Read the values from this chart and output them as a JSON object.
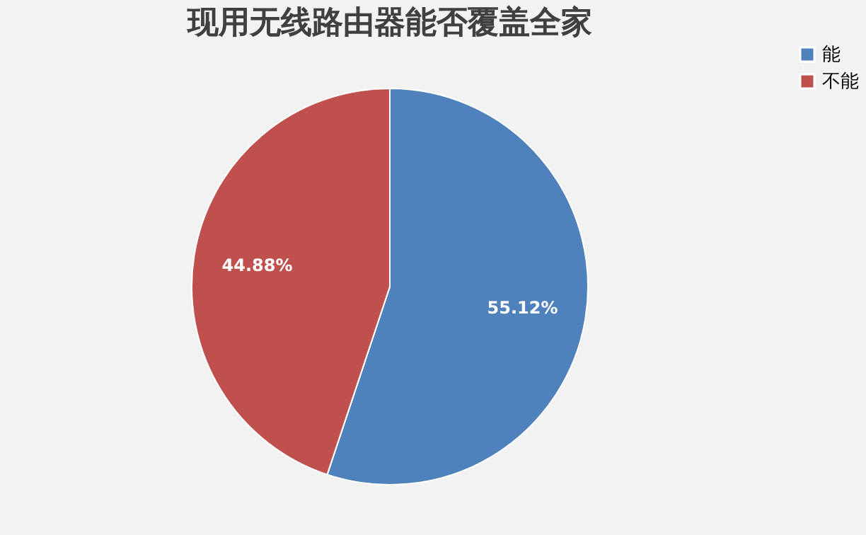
{
  "chart_data": {
    "type": "pie",
    "title": "现用无线路由器能否覆盖全家",
    "categories": [
      "能",
      "不能"
    ],
    "values": [
      55.12,
      44.88
    ],
    "colors": [
      "#4f81bd",
      "#c0504d"
    ],
    "value_labels": [
      "55.12%",
      "44.88%"
    ],
    "legend": "right"
  }
}
